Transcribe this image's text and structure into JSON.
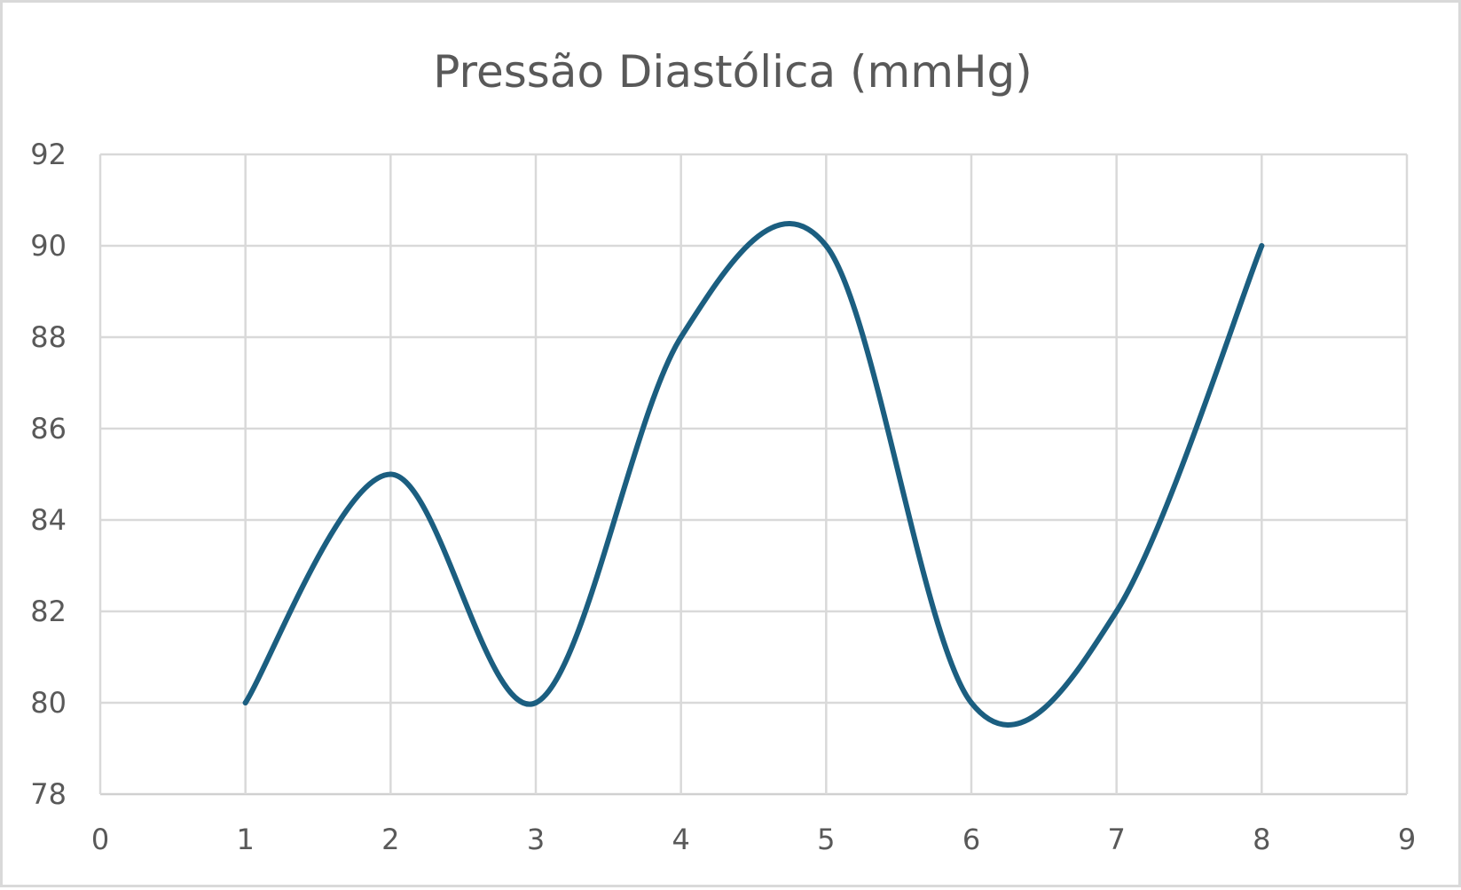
{
  "chart_data": {
    "type": "scatter",
    "style": "smooth-line",
    "title": "Pressão Diastólica (mmHg)",
    "xlabel": "",
    "ylabel": "",
    "xlim": [
      0,
      9
    ],
    "ylim": [
      78,
      92
    ],
    "x_ticks": [
      0,
      1,
      2,
      3,
      4,
      5,
      6,
      7,
      8,
      9
    ],
    "y_ticks": [
      78,
      80,
      82,
      84,
      86,
      88,
      90,
      92
    ],
    "grid": true,
    "legend": "none",
    "series": [
      {
        "x": [
          1,
          2,
          3,
          4,
          5,
          6,
          7,
          8
        ],
        "y": [
          80,
          85,
          80,
          88,
          90,
          80,
          82,
          90
        ],
        "color": "#1b5e80"
      }
    ]
  }
}
